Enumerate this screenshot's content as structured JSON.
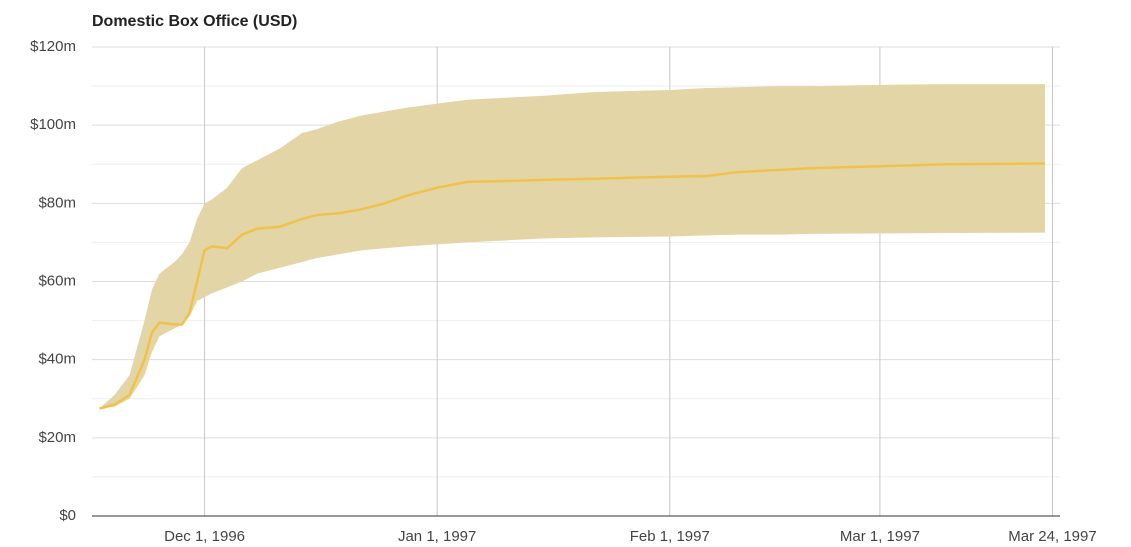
{
  "chart_data": {
    "type": "line",
    "title": "Domestic Box Office (USD)",
    "x": [
      "1996-11-17",
      "1996-11-19",
      "1996-11-21",
      "1996-11-23",
      "1996-11-24",
      "1996-11-25",
      "1996-11-27",
      "1996-11-28",
      "1996-11-29",
      "1996-11-30",
      "1996-12-01",
      "1996-12-02",
      "1996-12-04",
      "1996-12-06",
      "1996-12-08",
      "1996-12-11",
      "1996-12-14",
      "1996-12-16",
      "1996-12-19",
      "1996-12-22",
      "1996-12-25",
      "1996-12-28",
      "1997-01-01",
      "1997-01-05",
      "1997-01-10",
      "1997-01-15",
      "1997-01-22",
      "1997-02-01",
      "1997-02-06",
      "1997-02-10",
      "1997-02-15",
      "1997-02-20",
      "1997-03-01",
      "1997-03-10",
      "1997-03-23"
    ],
    "values": [
      27.5,
      28.5,
      31,
      40,
      47,
      49.5,
      49,
      49,
      52,
      60,
      68,
      69,
      68.5,
      72,
      73.5,
      74,
      76,
      77,
      77.5,
      78.5,
      80,
      82,
      84,
      85.5,
      85.7,
      86,
      86.3,
      86.8,
      87,
      88,
      88.5,
      89,
      89.5,
      90,
      90.2
    ],
    "color": "#f0c24b",
    "band": {
      "upper": [
        27.5,
        31,
        36,
        50,
        58,
        62,
        65,
        67,
        70,
        76,
        80,
        81,
        84,
        89,
        91,
        94,
        98,
        99,
        101,
        102.5,
        103.5,
        104.5,
        105.5,
        106.5,
        107,
        107.5,
        108.5,
        109,
        109.5,
        109.7,
        110,
        110,
        110.3,
        110.5,
        110.5
      ],
      "lower": [
        27.5,
        28,
        30,
        36,
        42,
        46,
        48,
        49,
        51,
        55,
        56,
        57,
        58.5,
        60,
        62,
        63.5,
        65,
        66,
        67,
        68,
        68.5,
        69,
        69.5,
        70,
        70.5,
        71,
        71.3,
        71.5,
        71.8,
        72,
        72,
        72.2,
        72.3,
        72.4,
        72.5
      ],
      "color": "#e3d5a6"
    },
    "xlim": [
      "1996-11-16",
      "1997-03-25"
    ],
    "xticks": [
      {
        "value": "1996-12-01",
        "label": "Dec 1, 1996"
      },
      {
        "value": "1997-01-01",
        "label": "Jan 1, 1997"
      },
      {
        "value": "1997-02-01",
        "label": "Feb 1, 1997"
      },
      {
        "value": "1997-03-01",
        "label": "Mar 1, 1997"
      },
      {
        "value": "1997-03-24",
        "label": "Mar 24, 1997"
      }
    ],
    "ylim": [
      0,
      120
    ],
    "yticks": [
      {
        "value": 0,
        "label": "$0"
      },
      {
        "value": 20,
        "label": "$20m"
      },
      {
        "value": 40,
        "label": "$40m"
      },
      {
        "value": 60,
        "label": "$60m"
      },
      {
        "value": 80,
        "label": "$80m"
      },
      {
        "value": 100,
        "label": "$100m"
      },
      {
        "value": 120,
        "label": "$120m"
      }
    ],
    "yticks_minor": [
      10,
      30,
      50,
      70,
      90,
      110
    ],
    "grid": true
  }
}
